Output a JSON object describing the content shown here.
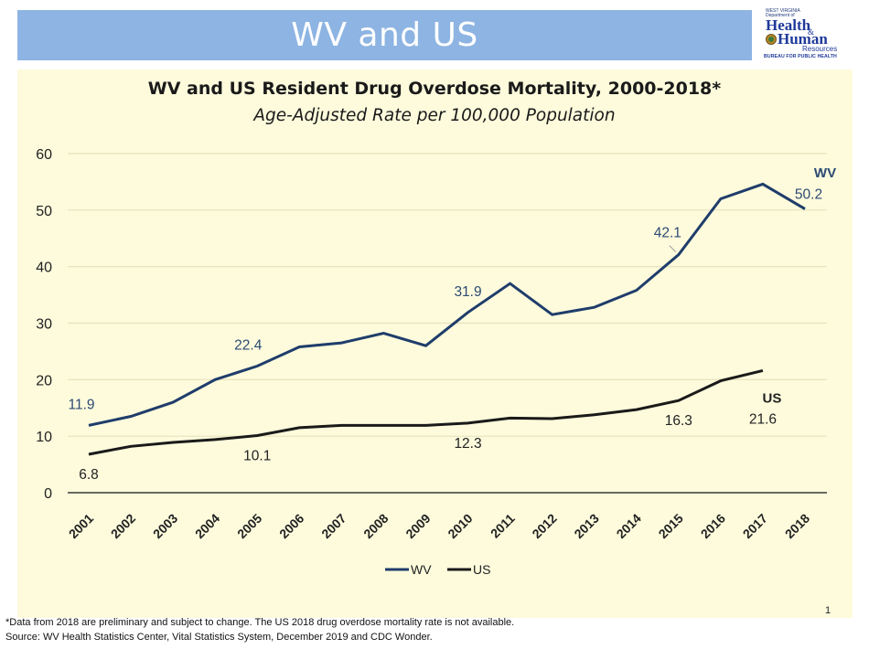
{
  "header": {
    "title": "WV and US"
  },
  "logo": {
    "line1": "WEST VIRGINIA",
    "line2": "Department of",
    "health": "Health",
    "amp": "&",
    "human": "Human",
    "resources": "Resources",
    "bureau": "BUREAU FOR PUBLIC HEALTH"
  },
  "chart_data": {
    "type": "line",
    "title": "WV and US Resident Drug Overdose Mortality, 2000-2018*",
    "subtitle": "Age-Adjusted Rate per 100,000 Population",
    "xlabel": "",
    "ylabel": "",
    "ylim": [
      0,
      60
    ],
    "yticks": [
      0,
      10,
      20,
      30,
      40,
      50,
      60
    ],
    "grid": true,
    "legend_position": "bottom",
    "categories": [
      "2001",
      "2002",
      "2003",
      "2004",
      "2005",
      "2006",
      "2007",
      "2008",
      "2009",
      "2010",
      "2011",
      "2012",
      "2013",
      "2014",
      "2015",
      "2016",
      "2017",
      "2018"
    ],
    "series": [
      {
        "name": "WV",
        "color": "#1f3d6b",
        "values": [
          11.9,
          13.5,
          16.0,
          20.0,
          22.4,
          25.8,
          26.5,
          28.2,
          26.0,
          31.9,
          37.0,
          31.5,
          32.8,
          35.8,
          42.1,
          52.0,
          54.6,
          50.2
        ],
        "labeled_points": [
          {
            "year": "2001",
            "label": "11.9"
          },
          {
            "year": "2005",
            "label": "22.4"
          },
          {
            "year": "2010",
            "label": "31.9"
          },
          {
            "year": "2015",
            "label": "42.1"
          },
          {
            "year": "2018",
            "label": "50.2"
          }
        ],
        "end_label": "WV"
      },
      {
        "name": "US",
        "color": "#1a1a1a",
        "values": [
          6.8,
          8.2,
          8.9,
          9.4,
          10.1,
          11.5,
          11.9,
          11.9,
          11.9,
          12.3,
          13.2,
          13.1,
          13.8,
          14.7,
          16.3,
          19.8,
          21.6,
          null
        ],
        "labeled_points": [
          {
            "year": "2001",
            "label": "6.8"
          },
          {
            "year": "2005",
            "label": "10.1"
          },
          {
            "year": "2010",
            "label": "12.3"
          },
          {
            "year": "2015",
            "label": "16.3"
          },
          {
            "year": "2017",
            "label": "21.6"
          }
        ],
        "end_label": "US"
      }
    ],
    "colors": {
      "gridline": "#e6e2bd",
      "axis": "#3a3a3a",
      "tick_text": "#222222",
      "wv_label": "#2d4a73",
      "us_label": "#222222"
    }
  },
  "footer": {
    "page_number": "1",
    "footnote": "*Data from 2018 are preliminary and subject to change. The US 2018 drug overdose mortality rate is not available.",
    "source": "Source:  WV Health Statistics Center, Vital Statistics System, December 2019 and CDC Wonder."
  }
}
